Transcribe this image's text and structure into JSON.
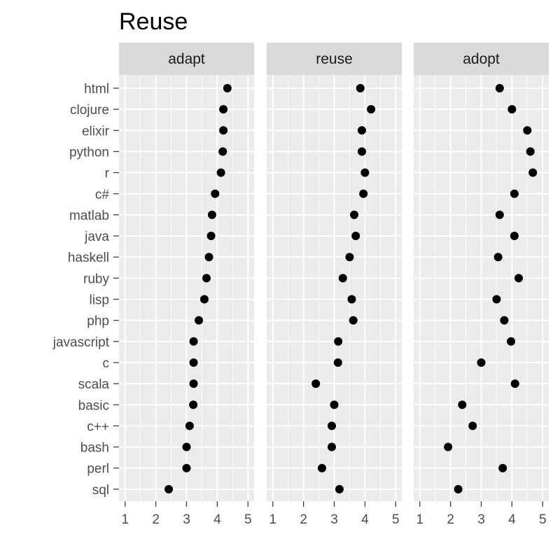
{
  "chart_data": {
    "type": "scatter",
    "title": "Reuse",
    "xlabel": "",
    "ylabel": "",
    "xlim": [
      0.8,
      5.2
    ],
    "x_ticks": [
      1,
      2,
      3,
      4,
      5
    ],
    "grid": true,
    "legend": "none",
    "categories": [
      "html",
      "clojure",
      "elixir",
      "python",
      "r",
      "c#",
      "matlab",
      "java",
      "haskell",
      "ruby",
      "lisp",
      "php",
      "javascript",
      "c",
      "scala",
      "basic",
      "c++",
      "bash",
      "perl",
      "sql"
    ],
    "facets": [
      {
        "label": "adapt",
        "values": [
          4.33,
          4.2,
          4.2,
          4.18,
          4.12,
          3.93,
          3.83,
          3.8,
          3.73,
          3.65,
          3.58,
          3.4,
          3.23,
          3.23,
          3.23,
          3.22,
          3.1,
          3.0,
          3.0,
          2.42
        ]
      },
      {
        "label": "reuse",
        "values": [
          3.85,
          4.2,
          3.9,
          3.9,
          4.0,
          3.95,
          3.65,
          3.7,
          3.5,
          3.28,
          3.57,
          3.62,
          3.13,
          3.12,
          2.4,
          3.0,
          2.92,
          2.92,
          2.6,
          3.17
        ]
      },
      {
        "label": "adopt",
        "values": [
          3.6,
          4.0,
          4.5,
          4.6,
          4.68,
          4.08,
          3.6,
          4.08,
          3.55,
          4.22,
          3.5,
          3.75,
          3.97,
          3.0,
          4.1,
          2.38,
          2.72,
          1.92,
          3.7,
          2.25
        ]
      }
    ]
  }
}
